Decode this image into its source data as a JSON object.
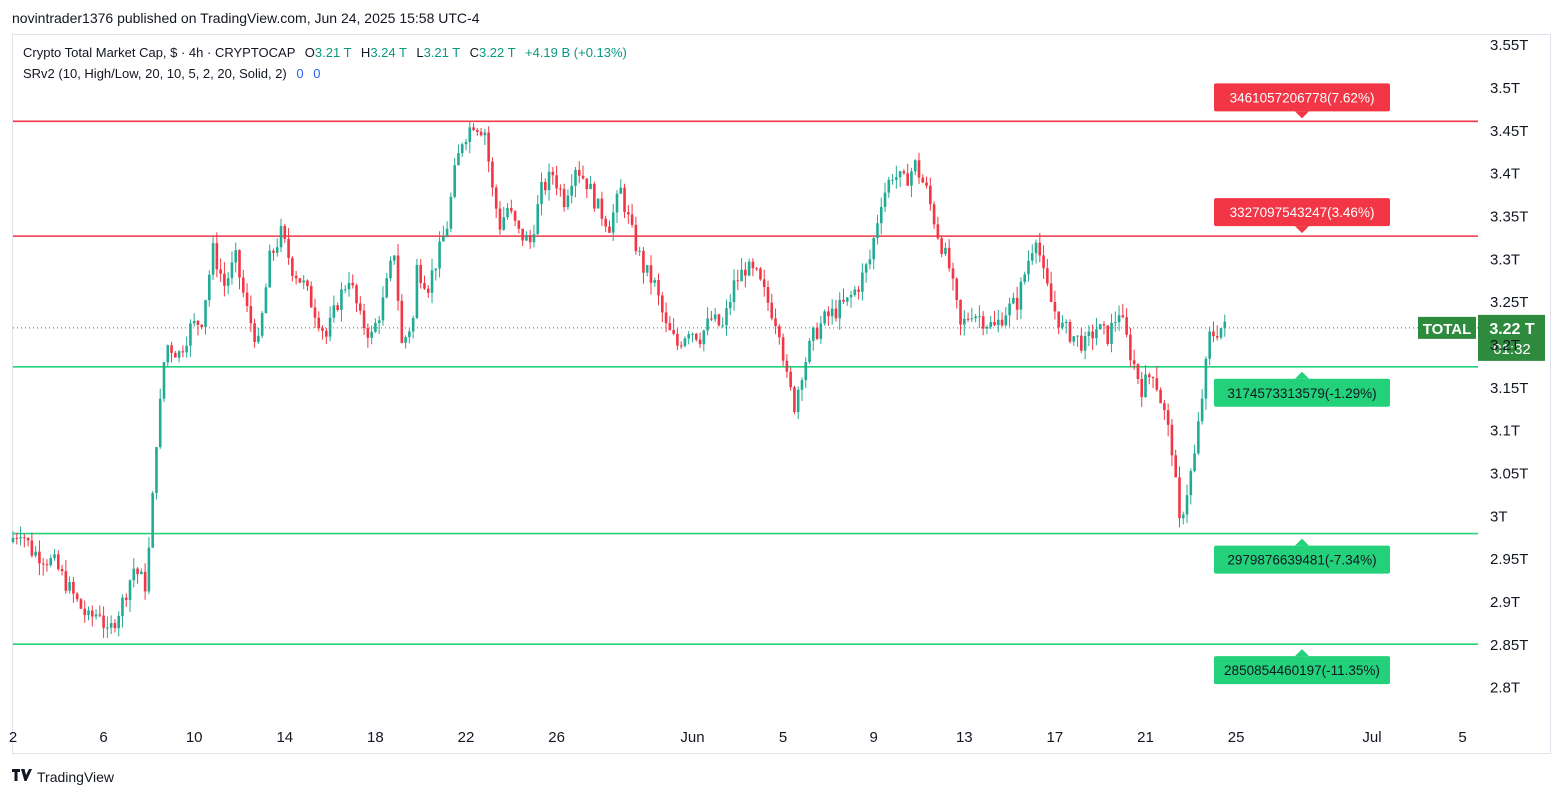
{
  "header": {
    "publisher": "novintrader1376 published on TradingView.com, Jun 24, 2025 15:58 UTC-4"
  },
  "legend": {
    "title": "Crypto Total Market Cap, $ · 4h · CRYPTOCAP",
    "open_label": "O",
    "open": "3.21 T",
    "high_label": "H",
    "high": "3.24 T",
    "low_label": "L",
    "low": "3.21 T",
    "close_label": "C",
    "close": "3.22 T",
    "change": "+4.19 B (+0.13%)",
    "indicator": "SRv2 (10, High/Low, 20, 10, 5, 2, 20, Solid, 2)",
    "indicator_val1": "0",
    "indicator_val2": "0"
  },
  "footer": {
    "brand": "TradingView",
    "logo": "tv-logo-icon"
  },
  "colors": {
    "up": "#22ab94",
    "down": "#f23645",
    "resistance": "#f23645",
    "support": "#22d17a",
    "price_tag": "#2e8b3e"
  },
  "chart_data": {
    "type": "candlestick",
    "symbol": "TOTAL",
    "y_unit": "T",
    "ylim": [
      2.76,
      3.57
    ],
    "y_ticks": [
      "3.55T",
      "3.5T",
      "3.45T",
      "3.4T",
      "3.35T",
      "3.3T",
      "3.25T",
      "3.2T",
      "3.15T",
      "3.1T",
      "3.05T",
      "3T",
      "2.95T",
      "2.9T",
      "2.85T",
      "2.8T"
    ],
    "y_tick_values": [
      3.55,
      3.5,
      3.45,
      3.4,
      3.35,
      3.3,
      3.25,
      3.2,
      3.15,
      3.1,
      3.05,
      3.0,
      2.95,
      2.9,
      2.85,
      2.8
    ],
    "x_ticks": [
      {
        "label": "2",
        "date": "2025-05-02"
      },
      {
        "label": "6",
        "date": "2025-05-06"
      },
      {
        "label": "10",
        "date": "2025-05-10"
      },
      {
        "label": "14",
        "date": "2025-05-14"
      },
      {
        "label": "18",
        "date": "2025-05-18"
      },
      {
        "label": "22",
        "date": "2025-05-22"
      },
      {
        "label": "26",
        "date": "2025-05-26"
      },
      {
        "label": "Jun",
        "date": "2025-06-01"
      },
      {
        "label": "5",
        "date": "2025-06-05"
      },
      {
        "label": "9",
        "date": "2025-06-09"
      },
      {
        "label": "13",
        "date": "2025-06-13"
      },
      {
        "label": "17",
        "date": "2025-06-17"
      },
      {
        "label": "21",
        "date": "2025-06-21"
      },
      {
        "label": "25",
        "date": "2025-06-25"
      },
      {
        "label": "Jul",
        "date": "2025-07-01"
      },
      {
        "label": "5",
        "date": "2025-07-05"
      }
    ],
    "last_price": {
      "value": 3.22,
      "label": "3.22 T",
      "countdown": "01:32",
      "symbol": "TOTAL"
    },
    "levels": [
      {
        "kind": "resistance",
        "value": 3461057206778,
        "label": "3461057206778(7.62%)"
      },
      {
        "kind": "resistance",
        "value": 3327097543247,
        "label": "3327097543247(3.46%)"
      },
      {
        "kind": "support",
        "value": 3174573313579,
        "label": "3174573313579(-1.29%)"
      },
      {
        "kind": "support",
        "value": 2979876639481,
        "label": "2979876639481(-7.34%)"
      },
      {
        "kind": "support",
        "value": 2850854460197,
        "label": "2850854460197(-11.35%)"
      }
    ],
    "price_path": [
      [
        "2025-05-02",
        2.97
      ],
      [
        "2025-05-02T12:00",
        2.985
      ],
      [
        "2025-05-03",
        2.96
      ],
      [
        "2025-05-04",
        2.945
      ],
      [
        "2025-05-05",
        2.9
      ],
      [
        "2025-05-05T12:00",
        2.88
      ],
      [
        "2025-05-06",
        2.89
      ],
      [
        "2025-05-06T08:00",
        2.86
      ],
      [
        "2025-05-06T20:00",
        2.89
      ],
      [
        "2025-05-07",
        2.9
      ],
      [
        "2025-05-07T12:00",
        2.94
      ],
      [
        "2025-05-08",
        2.92
      ],
      [
        "2025-05-08T04:00",
        2.96
      ],
      [
        "2025-05-08T08:00",
        3.02
      ],
      [
        "2025-05-08T12:00",
        3.09
      ],
      [
        "2025-05-08T16:00",
        3.13
      ],
      [
        "2025-05-08T20:00",
        3.18
      ],
      [
        "2025-05-09",
        3.2
      ],
      [
        "2025-05-09T12:00",
        3.19
      ],
      [
        "2025-05-10",
        3.22
      ],
      [
        "2025-05-10T12:00",
        3.23
      ],
      [
        "2025-05-11",
        3.31
      ],
      [
        "2025-05-11T12:00",
        3.27
      ],
      [
        "2025-05-12",
        3.3
      ],
      [
        "2025-05-12T12:00",
        3.24
      ],
      [
        "2025-05-13",
        3.2
      ],
      [
        "2025-05-13T12:00",
        3.3
      ],
      [
        "2025-05-14",
        3.33
      ],
      [
        "2025-05-14T12:00",
        3.29
      ],
      [
        "2025-05-15",
        3.27
      ],
      [
        "2025-05-15T12:00",
        3.24
      ],
      [
        "2025-05-16",
        3.21
      ],
      [
        "2025-05-16T12:00",
        3.25
      ],
      [
        "2025-05-17",
        3.28
      ],
      [
        "2025-05-17T12:00",
        3.23
      ],
      [
        "2025-05-18",
        3.21
      ],
      [
        "2025-05-18T12:00",
        3.25
      ],
      [
        "2025-05-19",
        3.31
      ],
      [
        "2025-05-19T08:00",
        3.2
      ],
      [
        "2025-05-19T20:00",
        3.23
      ],
      [
        "2025-05-20",
        3.29
      ],
      [
        "2025-05-20T12:00",
        3.27
      ],
      [
        "2025-05-21",
        3.31
      ],
      [
        "2025-05-21T08:00",
        3.34
      ],
      [
        "2025-05-21T16:00",
        3.4
      ],
      [
        "2025-05-22",
        3.44
      ],
      [
        "2025-05-22T12:00",
        3.46
      ],
      [
        "2025-05-23",
        3.45
      ],
      [
        "2025-05-23T08:00",
        3.38
      ],
      [
        "2025-05-23T16:00",
        3.34
      ],
      [
        "2025-05-24",
        3.36
      ],
      [
        "2025-05-24T12:00",
        3.33
      ],
      [
        "2025-05-25",
        3.32
      ],
      [
        "2025-05-25T12:00",
        3.38
      ],
      [
        "2025-05-26",
        3.4
      ],
      [
        "2025-05-26T12:00",
        3.37
      ],
      [
        "2025-05-27",
        3.41
      ],
      [
        "2025-05-27T12:00",
        3.39
      ],
      [
        "2025-05-28",
        3.36
      ],
      [
        "2025-05-28T12:00",
        3.34
      ],
      [
        "2025-05-29",
        3.38
      ],
      [
        "2025-05-29T12:00",
        3.33
      ],
      [
        "2025-05-30",
        3.29
      ],
      [
        "2025-05-30T12:00",
        3.27
      ],
      [
        "2025-05-31",
        3.22
      ],
      [
        "2025-05-31T12:00",
        3.2
      ],
      [
        "2025-06-01",
        3.22
      ],
      [
        "2025-06-01T12:00",
        3.21
      ],
      [
        "2025-06-02",
        3.23
      ],
      [
        "2025-06-02T12:00",
        3.22
      ],
      [
        "2025-06-03",
        3.27
      ],
      [
        "2025-06-03T12:00",
        3.29
      ],
      [
        "2025-06-04",
        3.28
      ],
      [
        "2025-06-04T12:00",
        3.25
      ],
      [
        "2025-06-05",
        3.22
      ],
      [
        "2025-06-05T08:00",
        3.16
      ],
      [
        "2025-06-05T16:00",
        3.13
      ],
      [
        "2025-06-06",
        3.17
      ],
      [
        "2025-06-06T12:00",
        3.21
      ],
      [
        "2025-06-07",
        3.23
      ],
      [
        "2025-06-07T12:00",
        3.24
      ],
      [
        "2025-06-08",
        3.25
      ],
      [
        "2025-06-08T12:00",
        3.27
      ],
      [
        "2025-06-09",
        3.3
      ],
      [
        "2025-06-09T12:00",
        3.37
      ],
      [
        "2025-06-10",
        3.4
      ],
      [
        "2025-06-10T12:00",
        3.39
      ],
      [
        "2025-06-11",
        3.41
      ],
      [
        "2025-06-11T12:00",
        3.38
      ],
      [
        "2025-06-12",
        3.33
      ],
      [
        "2025-06-12T12:00",
        3.29
      ],
      [
        "2025-06-13",
        3.22
      ],
      [
        "2025-06-13T12:00",
        3.24
      ],
      [
        "2025-06-14",
        3.23
      ],
      [
        "2025-06-14T12:00",
        3.22
      ],
      [
        "2025-06-15",
        3.24
      ],
      [
        "2025-06-15T12:00",
        3.25
      ],
      [
        "2025-06-16",
        3.3
      ],
      [
        "2025-06-16T08:00",
        3.33
      ],
      [
        "2025-06-16T16:00",
        3.28
      ],
      [
        "2025-06-17",
        3.25
      ],
      [
        "2025-06-17T12:00",
        3.22
      ],
      [
        "2025-06-18",
        3.21
      ],
      [
        "2025-06-18T12:00",
        3.2
      ],
      [
        "2025-06-19",
        3.22
      ],
      [
        "2025-06-19T12:00",
        3.21
      ],
      [
        "2025-06-20",
        3.24
      ],
      [
        "2025-06-20T12:00",
        3.19
      ],
      [
        "2025-06-21",
        3.15
      ],
      [
        "2025-06-21T12:00",
        3.17
      ],
      [
        "2025-06-22",
        3.12
      ],
      [
        "2025-06-22T08:00",
        3.08
      ],
      [
        "2025-06-22T16:00",
        2.99
      ],
      [
        "2025-06-23",
        3.03
      ],
      [
        "2025-06-23T08:00",
        3.07
      ],
      [
        "2025-06-23T16:00",
        3.14
      ],
      [
        "2025-06-24",
        3.21
      ],
      [
        "2025-06-24T12:00",
        3.22
      ]
    ]
  }
}
